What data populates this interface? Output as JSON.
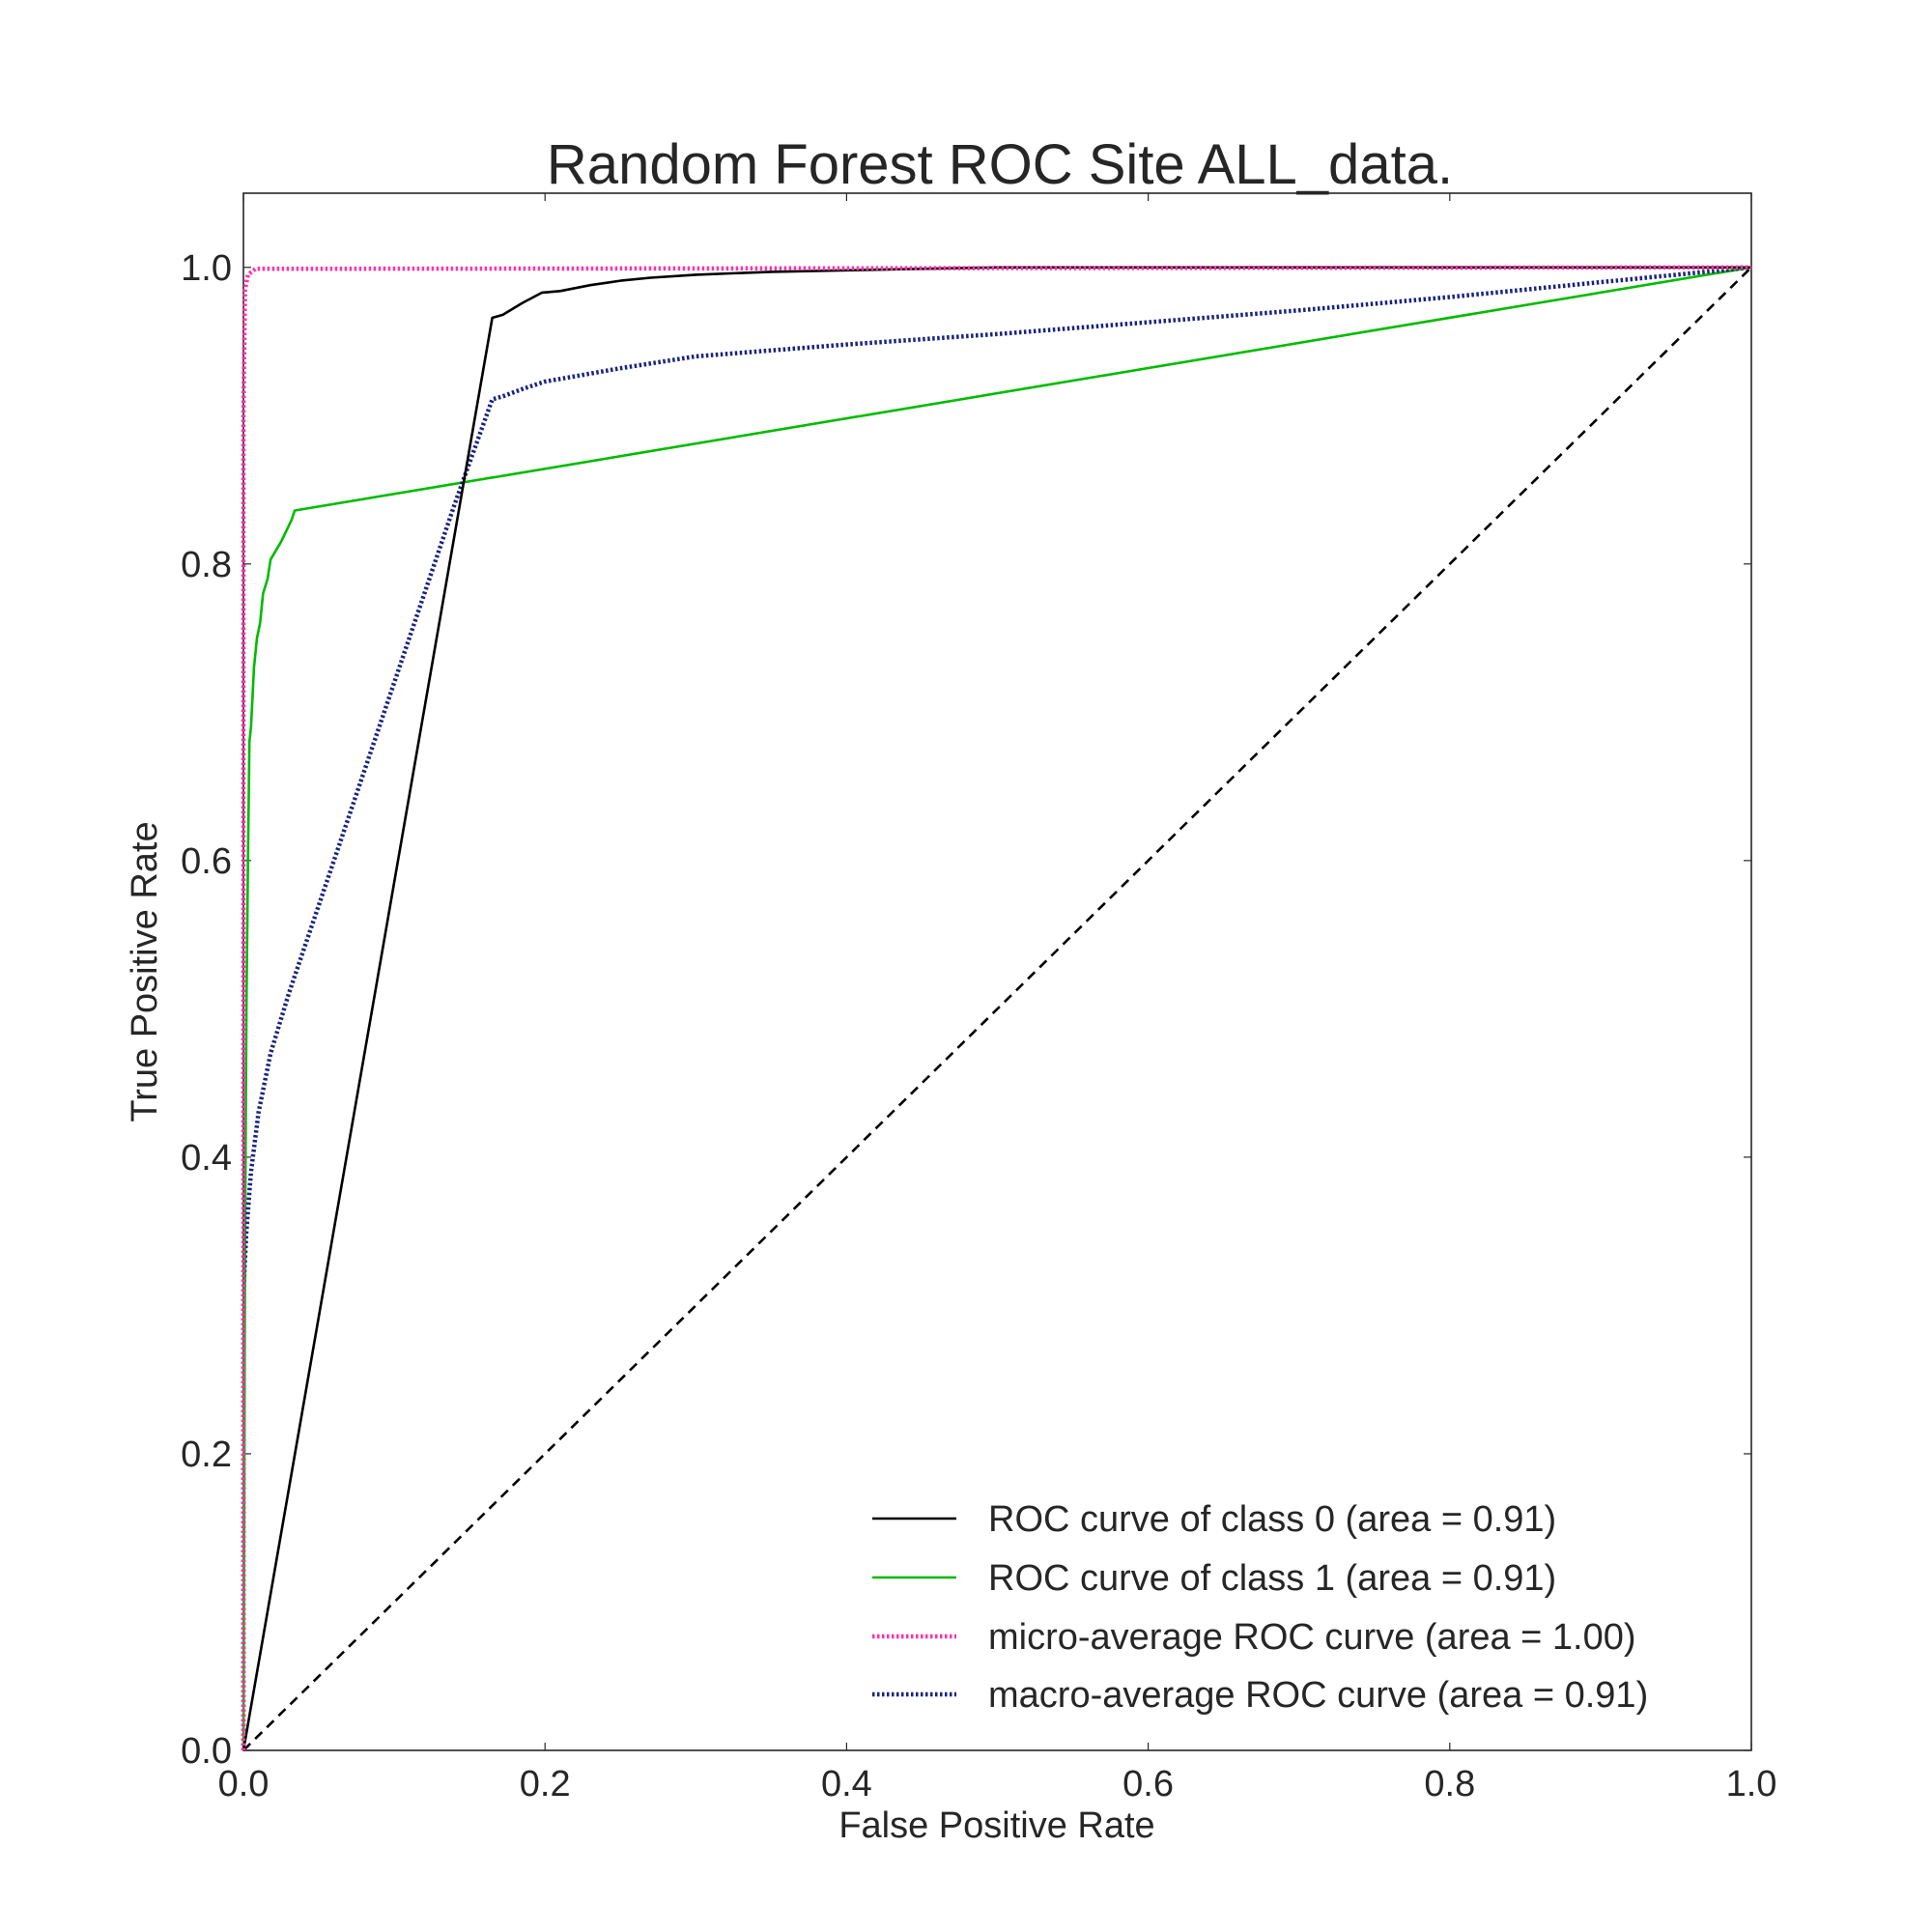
{
  "chart_data": {
    "type": "line",
    "title": "Random Forest ROC Site ALL_data.",
    "xlabel": "False Positive Rate",
    "ylabel": "True Positive Rate",
    "xlim": [
      0.0,
      1.0
    ],
    "ylim": [
      0.0,
      1.05
    ],
    "x_ticks": [
      0.0,
      0.2,
      0.4,
      0.6,
      0.8,
      1.0
    ],
    "x_tick_labels": [
      "0.0",
      "0.2",
      "0.4",
      "0.6",
      "0.8",
      "1.0"
    ],
    "y_ticks": [
      0.0,
      0.2,
      0.4,
      0.6,
      0.8,
      1.0
    ],
    "y_tick_labels": [
      "0.0",
      "0.2",
      "0.4",
      "0.6",
      "0.8",
      "1.0"
    ],
    "grid": false,
    "legend_position": "lower-right",
    "series": [
      {
        "name": "ROC curve of class 0 (area = 0.91)",
        "color": "#000000",
        "style": "solid",
        "x": [
          0.0,
          0.165,
          0.172,
          0.185,
          0.198,
          0.21,
          0.23,
          0.25,
          0.27,
          0.3,
          0.35,
          0.4,
          0.5,
          1.0
        ],
        "y": [
          0.0,
          0.966,
          0.968,
          0.976,
          0.983,
          0.984,
          0.988,
          0.991,
          0.993,
          0.995,
          0.997,
          0.998,
          1.0,
          1.0
        ]
      },
      {
        "name": "ROC curve of class 1 (area = 0.91)",
        "color": "#00bb00",
        "style": "solid",
        "x": [
          0.0,
          0.001,
          0.002,
          0.003,
          0.004,
          0.005,
          0.006,
          0.007,
          0.009,
          0.011,
          0.013,
          0.016,
          0.018,
          0.025,
          0.032,
          0.034,
          1.0
        ],
        "y": [
          0.0,
          0.33,
          0.5,
          0.6,
          0.68,
          0.69,
          0.71,
          0.73,
          0.75,
          0.76,
          0.78,
          0.79,
          0.803,
          0.815,
          0.83,
          0.836,
          1.0
        ]
      },
      {
        "name": "micro-average ROC curve (area = 1.00)",
        "color": "#ff33aa",
        "style": "dotted",
        "x": [
          0.0,
          0.0,
          0.001,
          0.003,
          0.008,
          1.0
        ],
        "y": [
          0.0,
          0.9,
          0.985,
          0.995,
          0.999,
          1.0
        ]
      },
      {
        "name": "macro-average ROC curve (area = 0.91)",
        "color": "#1a237e",
        "style": "dotted",
        "x": [
          0.0,
          0.0,
          0.002,
          0.005,
          0.01,
          0.018,
          0.03,
          0.04,
          0.06,
          0.08,
          0.1,
          0.12,
          0.14,
          0.165,
          0.172,
          0.185,
          0.2,
          0.25,
          0.3,
          0.4,
          0.5,
          0.6,
          0.7,
          0.8,
          0.9,
          1.0
        ],
        "y": [
          0.0,
          0.31,
          0.35,
          0.39,
          0.43,
          0.47,
          0.51,
          0.54,
          0.6,
          0.66,
          0.72,
          0.78,
          0.84,
          0.911,
          0.913,
          0.918,
          0.923,
          0.932,
          0.94,
          0.948,
          0.955,
          0.963,
          0.971,
          0.98,
          0.99,
          1.0
        ]
      }
    ],
    "reference_line": {
      "name": "chance",
      "color": "#000000",
      "style": "dashed",
      "x": [
        0.0,
        1.0
      ],
      "y": [
        0.0,
        1.0
      ]
    }
  }
}
